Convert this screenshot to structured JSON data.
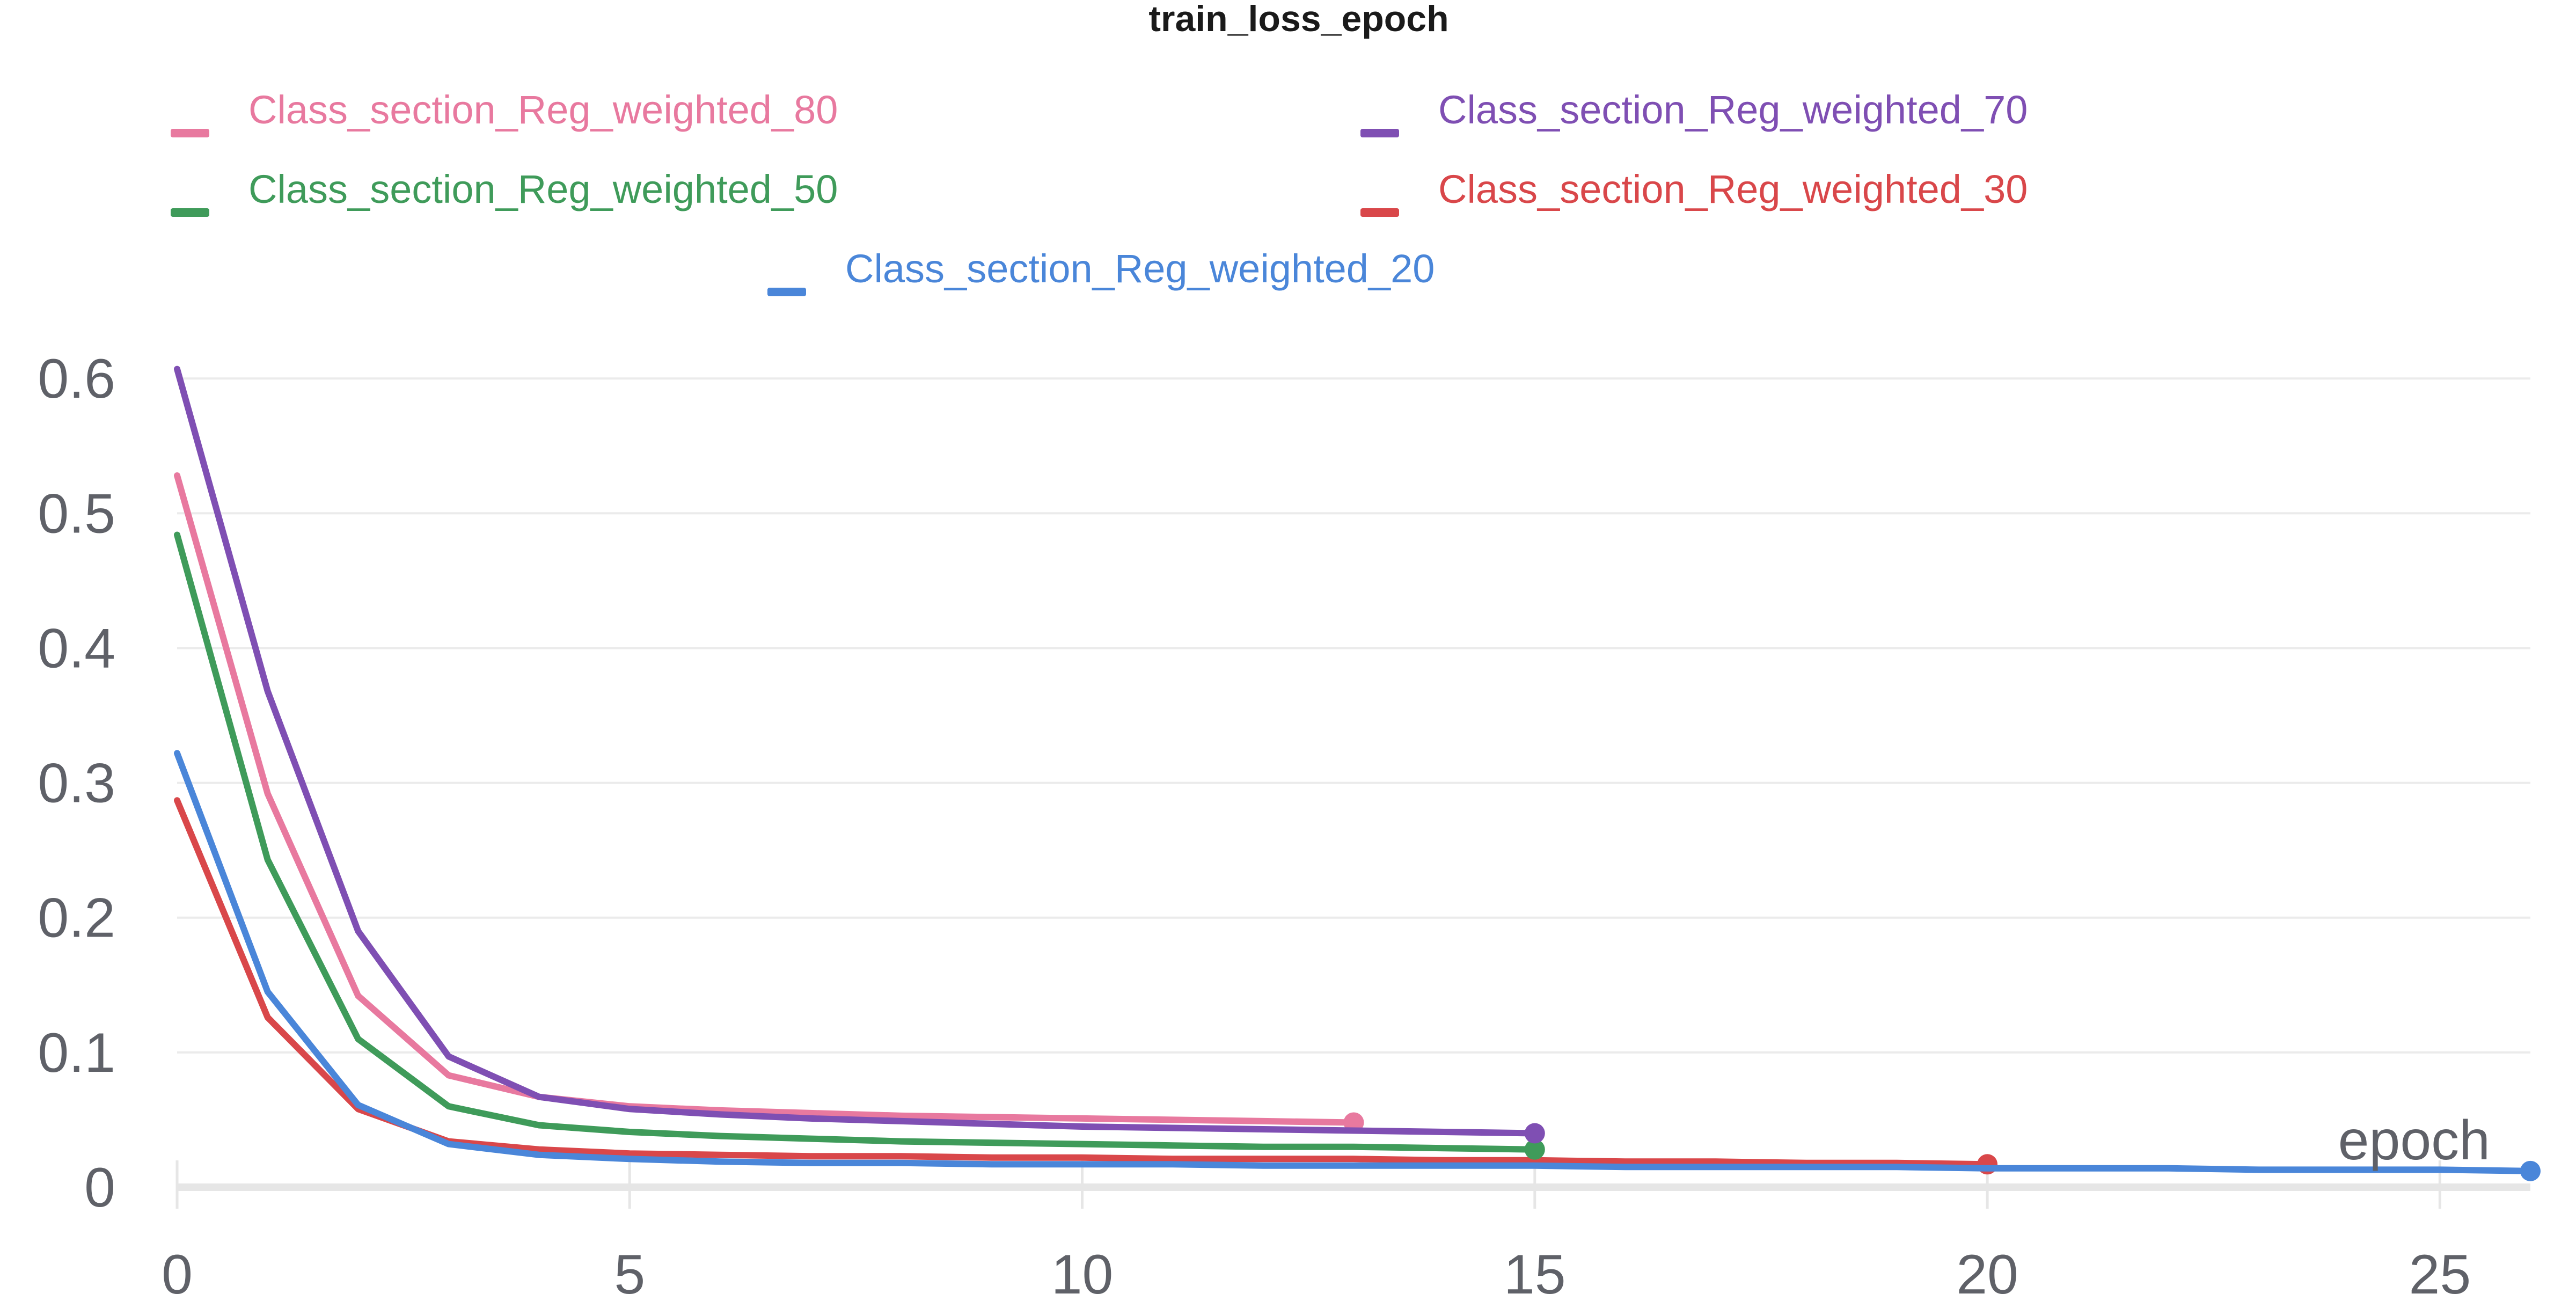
{
  "chart_data": {
    "type": "line",
    "title": "train_loss_epoch",
    "xlabel": "epoch",
    "ylabel": "",
    "xlim": [
      0,
      26
    ],
    "ylim": [
      0,
      0.62
    ],
    "x_ticks": [
      0,
      5,
      10,
      15,
      20,
      25
    ],
    "y_ticks": [
      0,
      0.1,
      0.2,
      0.3,
      0.4,
      0.5,
      0.6
    ],
    "y_tick_labels": [
      "0",
      "0.1",
      "0.2",
      "0.3",
      "0.4",
      "0.5",
      "0.6"
    ],
    "grid": true,
    "legend_position": "top",
    "series": [
      {
        "name": "Class_section_Reg_weighted_80",
        "color": "#e8799f",
        "x": [
          0,
          1,
          2,
          3,
          4,
          5,
          6,
          7,
          8,
          9,
          10,
          11,
          12,
          13
        ],
        "values": [
          0.528,
          0.292,
          0.142,
          0.083,
          0.067,
          0.06,
          0.057,
          0.055,
          0.053,
          0.052,
          0.051,
          0.05,
          0.049,
          0.048
        ]
      },
      {
        "name": "Class_section_Reg_weighted_70",
        "color": "#7f4fb3",
        "x": [
          0,
          1,
          2,
          3,
          4,
          5,
          6,
          7,
          8,
          9,
          10,
          11,
          12,
          13,
          14,
          15
        ],
        "values": [
          0.607,
          0.368,
          0.19,
          0.097,
          0.067,
          0.058,
          0.054,
          0.051,
          0.049,
          0.047,
          0.045,
          0.044,
          0.043,
          0.042,
          0.041,
          0.04
        ]
      },
      {
        "name": "Class_section_Reg_weighted_50",
        "color": "#3f9b5a",
        "x": [
          0,
          1,
          2,
          3,
          4,
          5,
          6,
          7,
          8,
          9,
          10,
          11,
          12,
          13,
          14,
          15
        ],
        "values": [
          0.484,
          0.243,
          0.11,
          0.06,
          0.046,
          0.041,
          0.038,
          0.036,
          0.034,
          0.033,
          0.032,
          0.031,
          0.03,
          0.03,
          0.029,
          0.028
        ]
      },
      {
        "name": "Class_section_Reg_weighted_30",
        "color": "#d9474a",
        "x": [
          0,
          1,
          2,
          3,
          4,
          5,
          6,
          7,
          8,
          9,
          10,
          11,
          12,
          13,
          14,
          15,
          16,
          17,
          18,
          19,
          20
        ],
        "values": [
          0.287,
          0.126,
          0.058,
          0.034,
          0.028,
          0.025,
          0.024,
          0.023,
          0.023,
          0.022,
          0.022,
          0.021,
          0.021,
          0.021,
          0.02,
          0.02,
          0.019,
          0.019,
          0.018,
          0.018,
          0.017
        ]
      },
      {
        "name": "Class_section_Reg_weighted_20",
        "color": "#4a86d9",
        "x": [
          0,
          1,
          2,
          3,
          4,
          5,
          6,
          7,
          8,
          9,
          10,
          11,
          12,
          13,
          14,
          15,
          16,
          17,
          18,
          19,
          20,
          21,
          22,
          23,
          24,
          25,
          26
        ],
        "values": [
          0.322,
          0.145,
          0.061,
          0.032,
          0.024,
          0.021,
          0.019,
          0.018,
          0.018,
          0.017,
          0.017,
          0.017,
          0.016,
          0.016,
          0.016,
          0.016,
          0.015,
          0.015,
          0.015,
          0.015,
          0.014,
          0.014,
          0.014,
          0.013,
          0.013,
          0.013,
          0.012
        ]
      }
    ]
  }
}
